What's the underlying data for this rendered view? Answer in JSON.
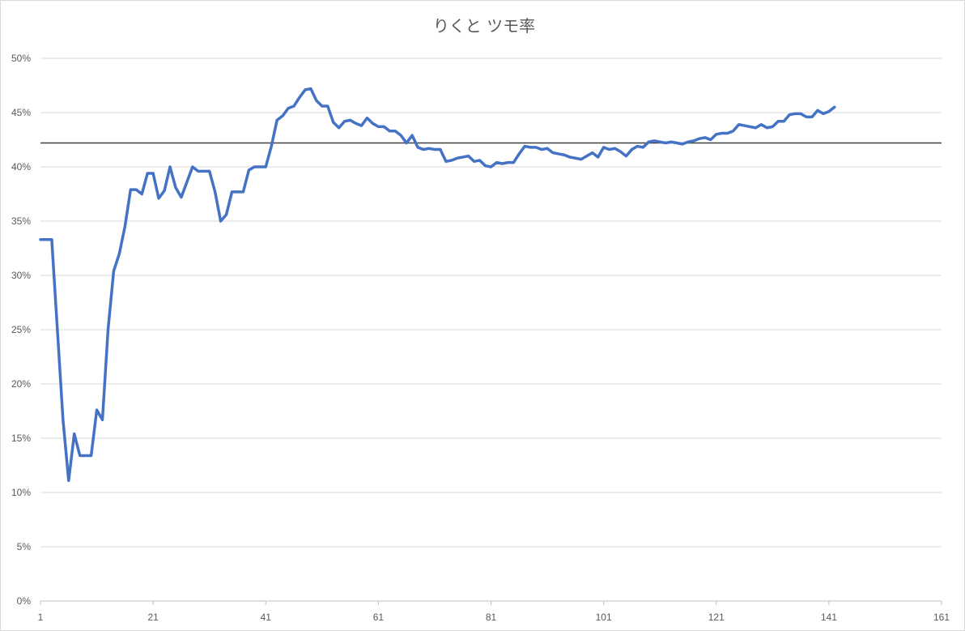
{
  "chart_data": {
    "type": "line",
    "title": "りくと ツモ率",
    "xlabel": "",
    "ylabel": "",
    "xlim": [
      1,
      161
    ],
    "ylim": [
      0,
      0.5
    ],
    "x_ticks": [
      1,
      21,
      41,
      61,
      81,
      101,
      121,
      141,
      161
    ],
    "y_ticks": [
      0,
      0.05,
      0.1,
      0.15,
      0.2,
      0.25,
      0.3,
      0.35,
      0.4,
      0.45,
      0.5
    ],
    "y_tick_labels": [
      "0%",
      "5%",
      "10%",
      "15%",
      "20%",
      "25%",
      "30%",
      "35%",
      "40%",
      "45%",
      "50%"
    ],
    "x_tick_labels": [
      "1",
      "21",
      "41",
      "61",
      "81",
      "101",
      "121",
      "141",
      "161"
    ],
    "grid": true,
    "legend": "none",
    "reference_line": {
      "y": 0.422,
      "color": "#404040"
    },
    "series": [
      {
        "color": "#4472c4",
        "values": [
          0.333,
          0.333,
          0.333,
          0.25,
          0.167,
          0.111,
          0.154,
          0.134,
          0.134,
          0.134,
          0.176,
          0.167,
          0.25,
          0.304,
          0.32,
          0.345,
          0.379,
          0.379,
          0.375,
          0.394,
          0.394,
          0.371,
          0.378,
          0.4,
          0.381,
          0.372,
          0.386,
          0.4,
          0.396,
          0.396,
          0.396,
          0.377,
          0.35,
          0.356,
          0.377,
          0.377,
          0.377,
          0.397,
          0.4,
          0.4,
          0.4,
          0.419,
          0.443,
          0.447,
          0.454,
          0.456,
          0.464,
          0.471,
          0.472,
          0.461,
          0.456,
          0.456,
          0.441,
          0.436,
          0.442,
          0.443,
          0.44,
          0.438,
          0.445,
          0.44,
          0.437,
          0.437,
          0.433,
          0.433,
          0.429,
          0.422,
          0.429,
          0.418,
          0.416,
          0.417,
          0.416,
          0.416,
          0.405,
          0.406,
          0.408,
          0.409,
          0.41,
          0.405,
          0.406,
          0.401,
          0.4,
          0.404,
          0.403,
          0.404,
          0.404,
          0.412,
          0.419,
          0.418,
          0.418,
          0.416,
          0.417,
          0.413,
          0.412,
          0.411,
          0.409,
          0.408,
          0.407,
          0.41,
          0.413,
          0.409,
          0.418,
          0.416,
          0.417,
          0.414,
          0.41,
          0.416,
          0.419,
          0.418,
          0.423,
          0.424,
          0.423,
          0.422,
          0.423,
          0.422,
          0.421,
          0.423,
          0.424,
          0.426,
          0.427,
          0.425,
          0.43,
          0.431,
          0.431,
          0.433,
          0.439,
          0.438,
          0.437,
          0.436,
          0.439,
          0.436,
          0.437,
          0.442,
          0.442,
          0.448,
          0.449,
          0.449,
          0.446,
          0.446,
          0.452,
          0.449,
          0.451,
          0.455
        ]
      }
    ]
  }
}
